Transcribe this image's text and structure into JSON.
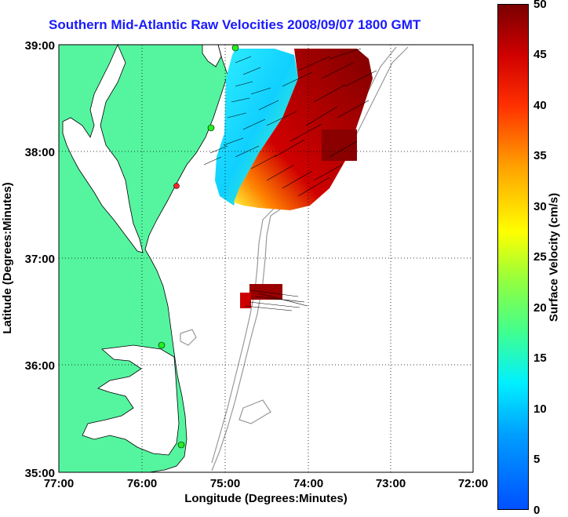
{
  "title": "Southern Mid-Atlantic Raw Velocities 2008/09/07 1800 GMT",
  "xaxis": {
    "label": "Longitude (Degrees:Minutes)",
    "ticks": [
      "77:00",
      "76:00",
      "75:00",
      "74:00",
      "73:00",
      "72:00"
    ]
  },
  "yaxis": {
    "label": "Latitude (Degrees:Minutes)",
    "ticks": [
      "39:00",
      "38:00",
      "37:00",
      "36:00",
      "35:00"
    ]
  },
  "colorbar": {
    "label": "Surface Velocity (cm/s)",
    "ticks": [
      "50",
      "45",
      "40",
      "35",
      "30",
      "25",
      "20",
      "15",
      "10",
      "5",
      "0"
    ],
    "range": [
      0,
      50
    ]
  },
  "colors": {
    "land": "#55f5a0",
    "title": "#1a1aff",
    "station": "#22ee22",
    "station_alt": "#ff2222"
  }
}
